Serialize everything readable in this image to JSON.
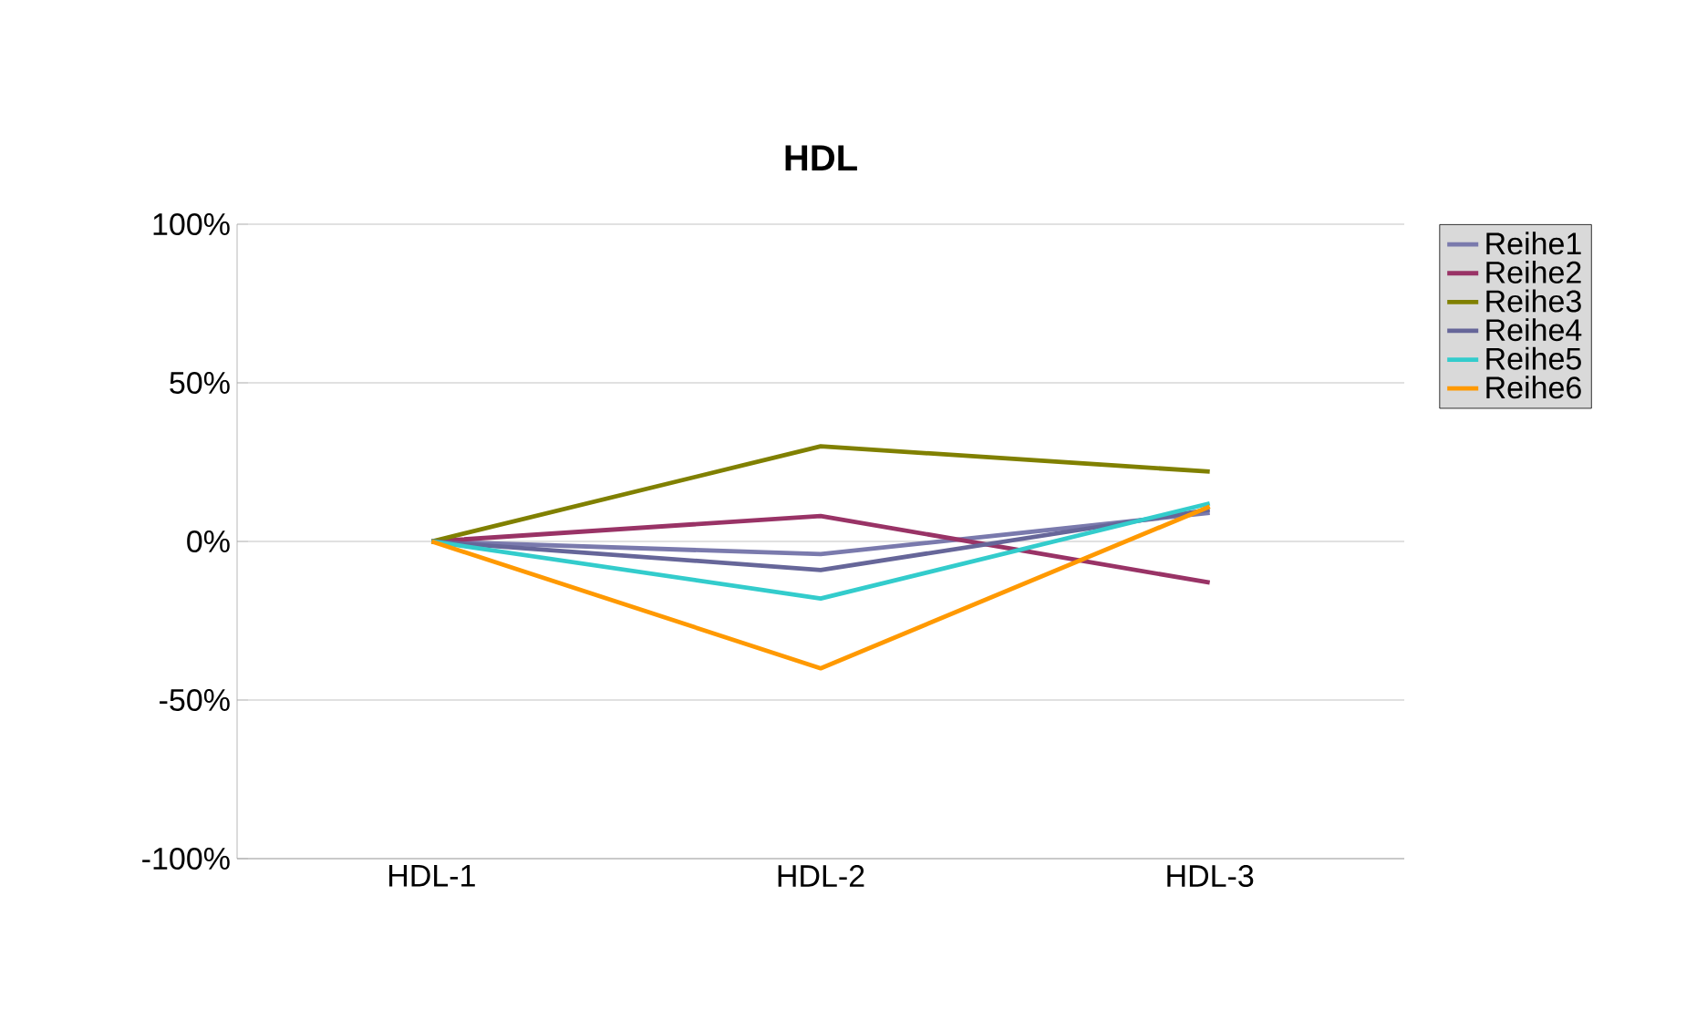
{
  "chart_data": {
    "type": "line",
    "title": "HDL",
    "categories": [
      "HDL-1",
      "HDL-2",
      "HDL-3"
    ],
    "series": [
      {
        "name": "Reihe1",
        "color": "#7a7aad",
        "values": [
          0,
          -4,
          9
        ]
      },
      {
        "name": "Reihe2",
        "color": "#993366",
        "values": [
          0,
          8,
          -13
        ]
      },
      {
        "name": "Reihe3",
        "color": "#808000",
        "values": [
          0,
          30,
          22
        ]
      },
      {
        "name": "Reihe4",
        "color": "#666699",
        "values": [
          0,
          -9,
          10
        ]
      },
      {
        "name": "Reihe5",
        "color": "#33cccc",
        "values": [
          0,
          -18,
          12
        ]
      },
      {
        "name": "Reihe6",
        "color": "#ff9900",
        "values": [
          0,
          -40,
          11
        ]
      }
    ],
    "ylim": [
      -100,
      100
    ],
    "yticks": [
      {
        "value": -100,
        "label": "-100%"
      },
      {
        "value": -50,
        "label": "-50%"
      },
      {
        "value": 0,
        "label": "0%"
      },
      {
        "value": 50,
        "label": "50%"
      },
      {
        "value": 100,
        "label": "100%"
      }
    ],
    "grid": "y",
    "legend": "right",
    "marker": "none",
    "line_style": "solid"
  }
}
